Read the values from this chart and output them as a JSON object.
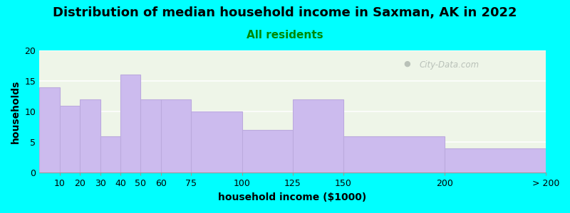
{
  "title": "Distribution of median household income in Saxman, AK in 2022",
  "subtitle": "All residents",
  "xlabel": "household income ($1000)",
  "ylabel": "households",
  "background_color": "#00ffff",
  "plot_bg_color": "#eef5e8",
  "bar_color": "#ccbbee",
  "bar_edge_color": "#bbaadd",
  "categories": [
    "10",
    "20",
    "30",
    "40",
    "50",
    "60",
    "75",
    "100",
    "125",
    "150",
    "200",
    "> 200"
  ],
  "values": [
    14,
    11,
    12,
    6,
    16,
    12,
    12,
    10,
    7,
    12,
    6,
    4
  ],
  "bin_lefts": [
    0,
    10,
    20,
    30,
    40,
    50,
    60,
    75,
    100,
    125,
    150,
    200
  ],
  "bin_rights": [
    10,
    20,
    30,
    40,
    50,
    60,
    75,
    100,
    125,
    150,
    200,
    250
  ],
  "ylim": [
    0,
    20
  ],
  "yticks": [
    0,
    5,
    10,
    15,
    20
  ],
  "xlim": [
    0,
    250
  ],
  "title_fontsize": 13,
  "subtitle_fontsize": 11,
  "label_fontsize": 10,
  "tick_fontsize": 9,
  "watermark_text": "City-Data.com",
  "watermark_color": "#b0b8b0"
}
